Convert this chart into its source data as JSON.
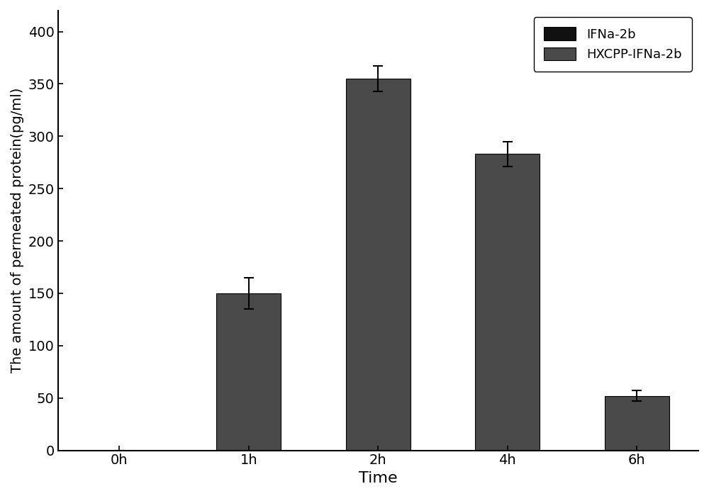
{
  "categories": [
    "0h",
    "1h",
    "2h",
    "4h",
    "6h"
  ],
  "ifna_values": [
    0,
    0,
    0,
    0,
    0
  ],
  "hxcpp_values": [
    0,
    150,
    355,
    283,
    52
  ],
  "hxcpp_errors": [
    0,
    15,
    12,
    12,
    5
  ],
  "ifna_error": [
    0,
    0,
    0,
    0,
    0
  ],
  "ifna_color": "#111111",
  "hxcpp_color": "#4a4a4a",
  "bar_width": 0.5,
  "xlabel": "Time",
  "ylabel": "The amount of permeated protein(pg/ml)",
  "ylim": [
    0,
    420
  ],
  "yticks": [
    0,
    50,
    100,
    150,
    200,
    250,
    300,
    350,
    400
  ],
  "legend_labels": [
    "IFNa-2b",
    "HXCPP-IFNa-2b"
  ],
  "background_color": "#ffffff",
  "xlabel_fontsize": 16,
  "ylabel_fontsize": 14,
  "tick_fontsize": 14,
  "legend_fontsize": 13
}
